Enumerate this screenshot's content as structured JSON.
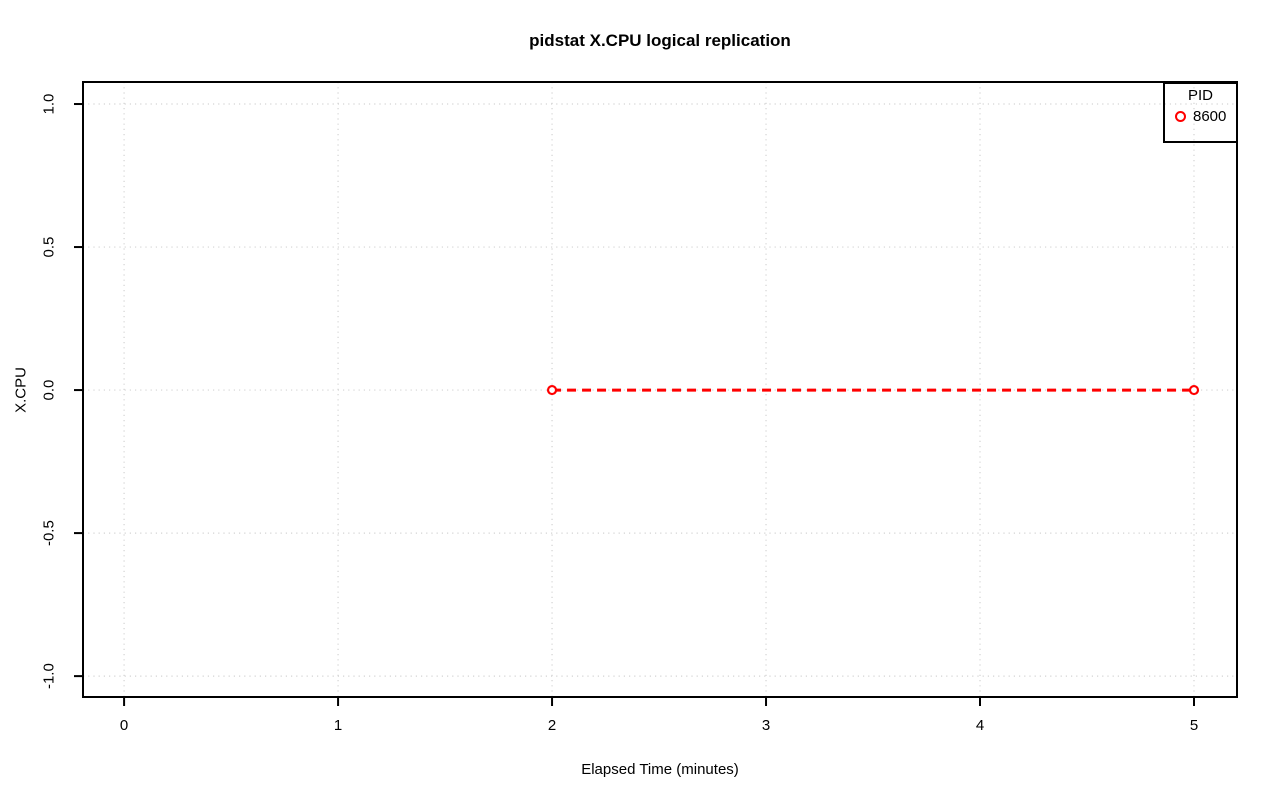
{
  "chart_data": {
    "type": "line",
    "title": "pidstat X.CPU logical replication",
    "xlabel": "Elapsed Time (minutes)",
    "ylabel": "X.CPU",
    "x_ticks": [
      0,
      1,
      2,
      3,
      4,
      5
    ],
    "x_tick_labels": [
      "0",
      "1",
      "2",
      "3",
      "4",
      "5"
    ],
    "y_ticks": [
      -1.0,
      -0.5,
      0.0,
      0.5,
      1.0
    ],
    "y_tick_labels": [
      "-1.0",
      "-0.5",
      "0.0",
      "0.5",
      "1.0"
    ],
    "xlim": [
      -0.192,
      5.201
    ],
    "ylim": [
      -1.073,
      1.077
    ],
    "grid": true,
    "grid_style": "dotted",
    "legend": {
      "title": "PID",
      "position": "topright",
      "entries": [
        {
          "label": "8600",
          "color": "#ff0000",
          "marker": "open-circle"
        }
      ]
    },
    "series": [
      {
        "name": "8600",
        "color": "#ff0000",
        "line_style": "dashed",
        "marker": "open-circle",
        "x": [
          2,
          5
        ],
        "y": [
          0,
          0
        ]
      }
    ]
  },
  "colors": {
    "series_red": "#ff0000",
    "grid": "#d3d3d3",
    "axis": "#000000",
    "text": "#000000",
    "background": "#ffffff"
  }
}
